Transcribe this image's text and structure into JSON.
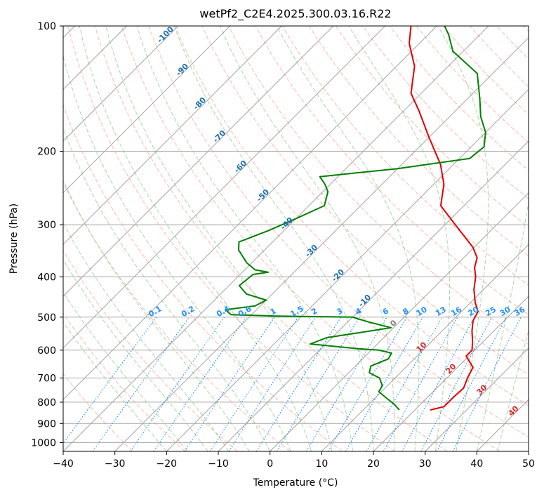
{
  "chart_data": {
    "type": "line",
    "subtype": "skew-T log-p thermodynamic diagram",
    "title": "wetPf2_C2E4.2025.300.03.16.R22",
    "xlabel": "Temperature (°C)",
    "ylabel": "Pressure (hPa)",
    "xlim": [
      -40,
      50
    ],
    "ylim": [
      1050,
      100
    ],
    "y_scale": "log",
    "skew_x": true,
    "grid": true,
    "x_ticks": [
      "−40",
      "−30",
      "−20",
      "−10",
      "0",
      "10",
      "20",
      "30",
      "40",
      "50"
    ],
    "y_ticks": [
      "100",
      "200",
      "300",
      "400",
      "500",
      "600",
      "700",
      "800",
      "900",
      "1000"
    ],
    "series": [
      {
        "role": "temperature",
        "color": "#e00000",
        "points": [
          {
            "p": 835,
            "t": 23.0
          },
          {
            "p": 820,
            "t": 25.0
          },
          {
            "p": 780,
            "t": 25.0
          },
          {
            "p": 740,
            "t": 25.2
          },
          {
            "p": 700,
            "t": 24.0
          },
          {
            "p": 660,
            "t": 23.0
          },
          {
            "p": 620,
            "t": 19.5
          },
          {
            "p": 600,
            "t": 19.5
          },
          {
            "p": 570,
            "t": 17.8
          },
          {
            "p": 540,
            "t": 15.8
          },
          {
            "p": 510,
            "t": 14.0
          },
          {
            "p": 485,
            "t": 13.2
          },
          {
            "p": 460,
            "t": 10.8
          },
          {
            "p": 430,
            "t": 8.2
          },
          {
            "p": 400,
            "t": 6.0
          },
          {
            "p": 380,
            "t": 4.0
          },
          {
            "p": 360,
            "t": 2.6
          },
          {
            "p": 340,
            "t": -0.2
          },
          {
            "p": 300,
            "t": -8.0
          },
          {
            "p": 270,
            "t": -14.5
          },
          {
            "p": 240,
            "t": -18.0
          },
          {
            "p": 215,
            "t": -22.5
          },
          {
            "p": 185,
            "t": -30.0
          },
          {
            "p": 160,
            "t": -37.0
          },
          {
            "p": 145,
            "t": -42.0
          },
          {
            "p": 125,
            "t": -46.5
          },
          {
            "p": 110,
            "t": -52.0
          },
          {
            "p": 100,
            "t": -55.0
          }
        ]
      },
      {
        "role": "dewpoint",
        "color": "#008000",
        "points": [
          {
            "p": 835,
            "t": 17.0
          },
          {
            "p": 810,
            "t": 15.0
          },
          {
            "p": 780,
            "t": 12.0
          },
          {
            "p": 755,
            "t": 9.5
          },
          {
            "p": 730,
            "t": 9.0
          },
          {
            "p": 700,
            "t": 7.0
          },
          {
            "p": 680,
            "t": 4.0
          },
          {
            "p": 655,
            "t": 3.0
          },
          {
            "p": 630,
            "t": 5.0
          },
          {
            "p": 610,
            "t": 4.5
          },
          {
            "p": 600,
            "t": 1.5
          },
          {
            "p": 595,
            "t": -3.0
          },
          {
            "p": 580,
            "t": -13.0
          },
          {
            "p": 560,
            "t": -11.0
          },
          {
            "p": 540,
            "t": -4.0
          },
          {
            "p": 530,
            "t": -0.5
          },
          {
            "p": 515,
            "t": -5.5
          },
          {
            "p": 500,
            "t": -10.0
          },
          {
            "p": 497,
            "t": -25.0
          },
          {
            "p": 493,
            "t": -34.0
          },
          {
            "p": 480,
            "t": -36.0
          },
          {
            "p": 470,
            "t": -31.0
          },
          {
            "p": 455,
            "t": -30.0
          },
          {
            "p": 440,
            "t": -35.0
          },
          {
            "p": 420,
            "t": -38.0
          },
          {
            "p": 395,
            "t": -37.5
          },
          {
            "p": 390,
            "t": -35.0
          },
          {
            "p": 385,
            "t": -38.0
          },
          {
            "p": 370,
            "t": -41.0
          },
          {
            "p": 345,
            "t": -45.0
          },
          {
            "p": 330,
            "t": -46.5
          },
          {
            "p": 310,
            "t": -43.0
          },
          {
            "p": 290,
            "t": -40.0
          },
          {
            "p": 270,
            "t": -37.0
          },
          {
            "p": 250,
            "t": -39.0
          },
          {
            "p": 240,
            "t": -41.0
          },
          {
            "p": 230,
            "t": -43.5
          },
          {
            "p": 220,
            "t": -30.0
          },
          {
            "p": 208,
            "t": -18.0
          },
          {
            "p": 195,
            "t": -17.5
          },
          {
            "p": 180,
            "t": -20.0
          },
          {
            "p": 165,
            "t": -24.0
          },
          {
            "p": 150,
            "t": -27.5
          },
          {
            "p": 130,
            "t": -33.0
          },
          {
            "p": 115,
            "t": -42.0
          },
          {
            "p": 105,
            "t": -46.0
          },
          {
            "p": 100,
            "t": -48.5
          }
        ]
      }
    ],
    "isotherms_c": [
      -120,
      -110,
      -100,
      -90,
      -80,
      -70,
      -60,
      -50,
      -40,
      -30,
      -20,
      -10,
      0,
      10,
      20,
      30,
      40,
      50
    ],
    "isobars_hpa": [
      100,
      200,
      300,
      400,
      500,
      600,
      700,
      800,
      900,
      1000
    ],
    "dry_adiabat_labels": [
      "-100",
      "-90",
      "-80",
      "-70",
      "-60",
      "-50",
      "-40",
      "-30",
      "-20",
      "-10"
    ],
    "moist_adiabat_labels": [
      "0",
      "10",
      "20",
      "30",
      "40"
    ],
    "mixing_ratio_labels": [
      "0.1",
      "0.2",
      "0.4",
      "0.6",
      "1",
      "1.5",
      "2",
      "3",
      "4",
      "6",
      "8",
      "10",
      "13",
      "16",
      "20",
      "25",
      "30",
      "36"
    ],
    "colors": {
      "temperature": "#e00000",
      "dewpoint": "#008000",
      "isotherm": "#8c8c8c",
      "isobar": "#a8a8a8",
      "dry_adiabat": "#f5a58a",
      "moist_adiabat": "#8cc88c",
      "mixing_ratio": "#1f8fff",
      "labels_dry": "#1f6fb4",
      "labels_moist": "#d62728",
      "labels_mixing": "#1f8fff"
    }
  }
}
